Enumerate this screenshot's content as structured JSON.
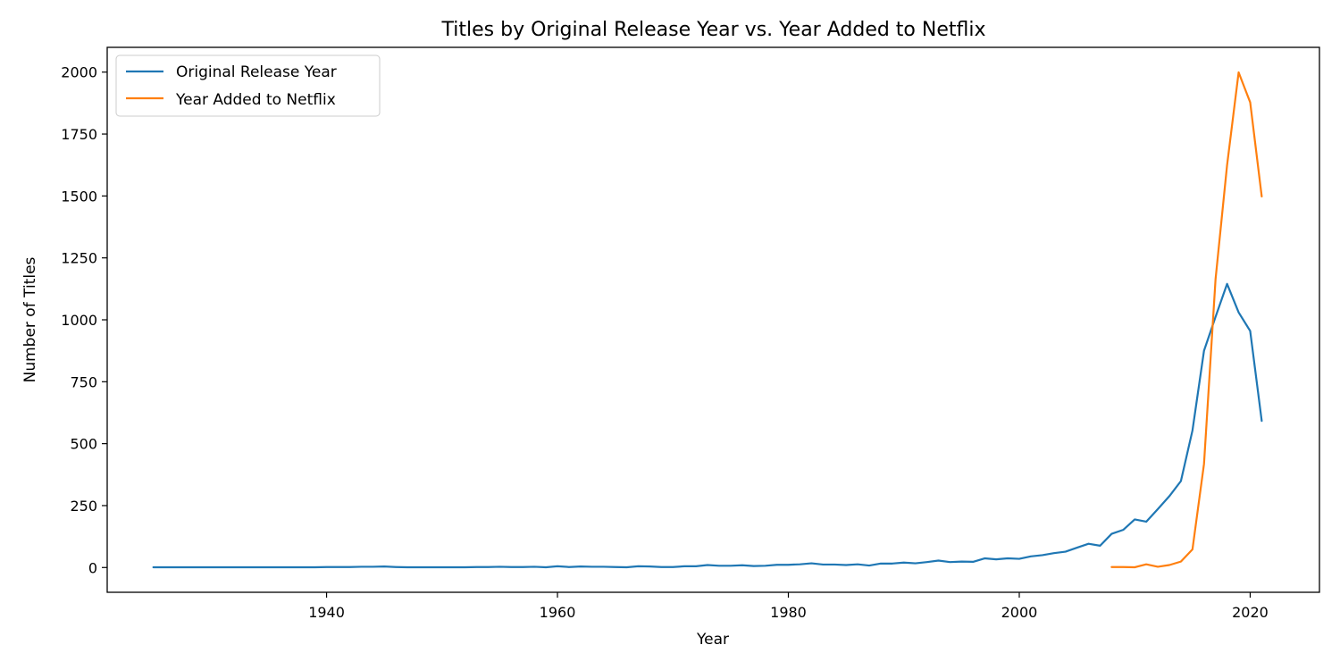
{
  "chart_data": {
    "type": "line",
    "title": "Titles by Original Release Year vs. Year Added to Netflix",
    "xlabel": "Year",
    "ylabel": "Number of Titles",
    "xlim": [
      1921,
      2026
    ],
    "ylim": [
      -100,
      2100
    ],
    "xticks": [
      1940,
      1960,
      1980,
      2000,
      2020
    ],
    "yticks": [
      0,
      250,
      500,
      750,
      1000,
      1250,
      1500,
      1750,
      2000
    ],
    "grid": false,
    "legend_position": "top-left",
    "colors": {
      "series_0": "#1f77b4",
      "series_1": "#ff7f0e",
      "axes": "#000000",
      "background": "#ffffff"
    },
    "series": [
      {
        "name": "Original Release Year",
        "x": [
          1925,
          1926,
          1927,
          1928,
          1929,
          1930,
          1931,
          1932,
          1933,
          1934,
          1935,
          1936,
          1937,
          1938,
          1939,
          1940,
          1941,
          1942,
          1943,
          1944,
          1945,
          1946,
          1947,
          1948,
          1949,
          1950,
          1951,
          1952,
          1953,
          1954,
          1955,
          1956,
          1957,
          1958,
          1959,
          1960,
          1961,
          1962,
          1963,
          1964,
          1965,
          1966,
          1967,
          1968,
          1969,
          1970,
          1971,
          1972,
          1973,
          1974,
          1975,
          1976,
          1977,
          1978,
          1979,
          1980,
          1981,
          1982,
          1983,
          1984,
          1985,
          1986,
          1987,
          1988,
          1989,
          1990,
          1991,
          1992,
          1993,
          1994,
          1995,
          1996,
          1997,
          1998,
          1999,
          2000,
          2001,
          2002,
          2003,
          2004,
          2005,
          2006,
          2007,
          2008,
          2009,
          2010,
          2011,
          2012,
          2013,
          2014,
          2015,
          2016,
          2017,
          2018,
          2019,
          2020,
          2021
        ],
        "values": [
          1,
          1,
          1,
          1,
          1,
          1,
          1,
          1,
          1,
          1,
          1,
          1,
          1,
          1,
          1,
          2,
          2,
          2,
          3,
          3,
          4,
          2,
          1,
          1,
          1,
          1,
          1,
          1,
          2,
          2,
          3,
          2,
          2,
          3,
          1,
          5,
          2,
          4,
          3,
          3,
          2,
          1,
          5,
          4,
          2,
          2,
          5,
          5,
          10,
          7,
          7,
          9,
          6,
          7,
          11,
          11,
          13,
          17,
          12,
          12,
          10,
          13,
          8,
          16,
          16,
          20,
          17,
          22,
          28,
          22,
          24,
          23,
          37,
          33,
          37,
          35,
          45,
          50,
          58,
          64,
          80,
          96,
          88,
          136,
          152,
          194,
          185,
          236,
          288,
          349,
          553,
          875,
          1012,
          1145,
          1030,
          955,
          592
        ]
      },
      {
        "name": "Year Added to Netflix",
        "x": [
          2008,
          2009,
          2010,
          2011,
          2012,
          2013,
          2014,
          2015,
          2016,
          2017,
          2018,
          2019,
          2020,
          2021
        ],
        "values": [
          2,
          2,
          1,
          13,
          3,
          10,
          24,
          73,
          418,
          1164,
          1625,
          1999,
          1878,
          1498
        ]
      }
    ]
  }
}
